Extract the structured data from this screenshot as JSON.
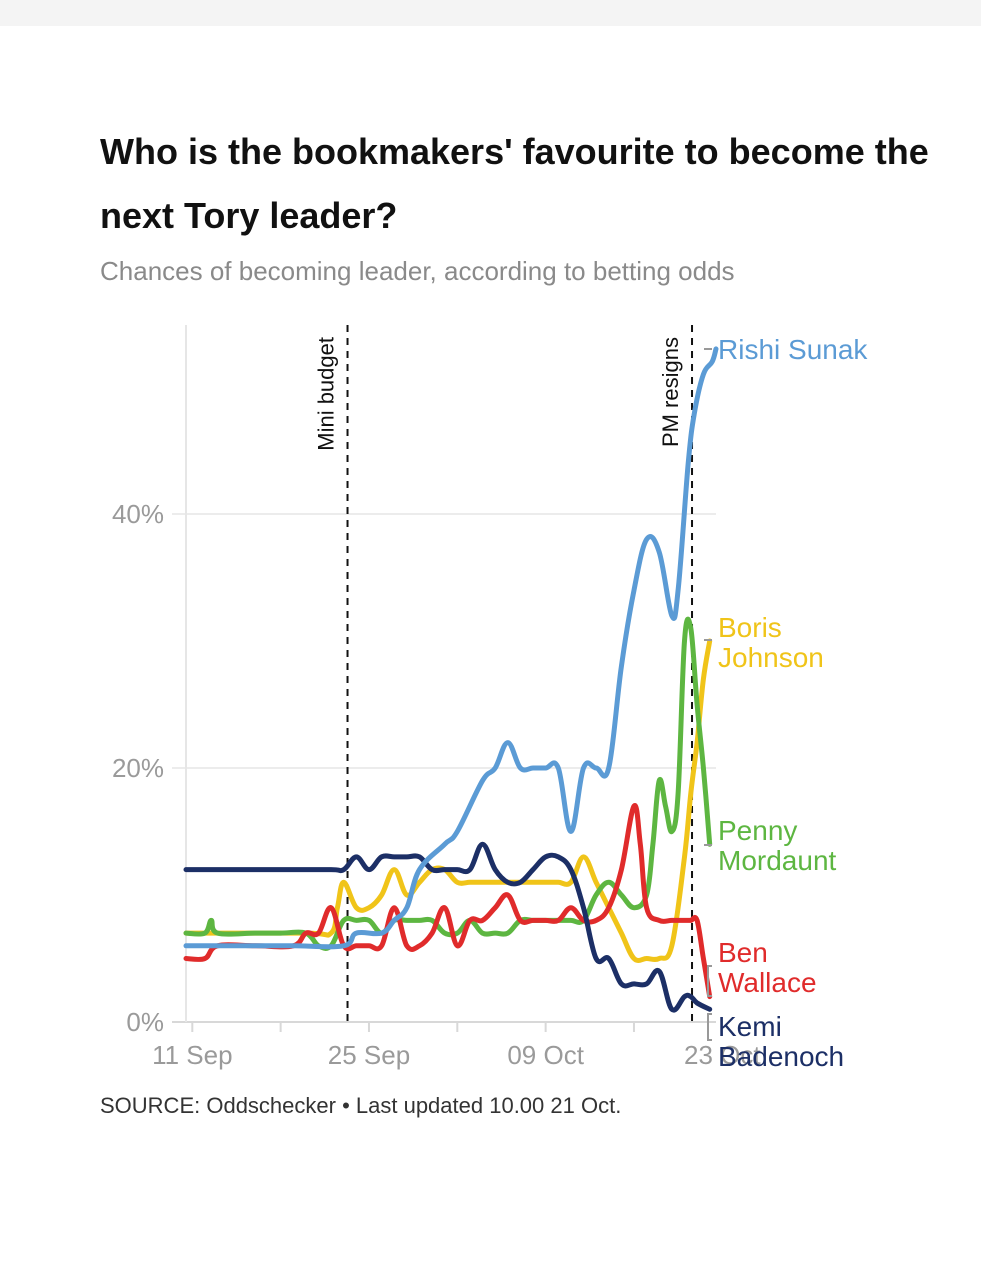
{
  "header": {
    "title": "Who is the bookmakers' favourite to become the next Tory leader?",
    "subtitle": "Chances of becoming leader, according to betting odds"
  },
  "footer": {
    "source": "SOURCE: Oddschecker • Last updated 10.00 21 Oct."
  },
  "chart_data": {
    "type": "line",
    "title": "Who is the bookmakers' favourite to become the next Tory leader?",
    "subtitle": "Chances of becoming leader, according to betting odds",
    "xlabel": "",
    "ylabel": "",
    "x_ticks": [
      "11 Sep",
      "25 Sep",
      "09 Oct",
      "23 Oct"
    ],
    "x_tick_days": [
      11,
      25,
      39,
      53
    ],
    "x_range": [
      10.5,
      52.5
    ],
    "y_ticks": [
      0,
      20,
      40
    ],
    "y_tick_labels": [
      "0%",
      "20%",
      "40%"
    ],
    "ylim": [
      0,
      55
    ],
    "grid": true,
    "legend": "inline-right",
    "events": [
      {
        "label": "Mini budget",
        "x_day": 23.3
      },
      {
        "label": "PM resigns",
        "x_day": 50.6
      }
    ],
    "series": [
      {
        "name": "Rishi Sunak",
        "color": "#5b9bd5",
        "points": [
          [
            10.5,
            6
          ],
          [
            16,
            6
          ],
          [
            19,
            6
          ],
          [
            23,
            6
          ],
          [
            24,
            7
          ],
          [
            26,
            7
          ],
          [
            27,
            8
          ],
          [
            28,
            9
          ],
          [
            29,
            12
          ],
          [
            31,
            14
          ],
          [
            32,
            15
          ],
          [
            34,
            19
          ],
          [
            35,
            20
          ],
          [
            36,
            22
          ],
          [
            37,
            20
          ],
          [
            38,
            20
          ],
          [
            39,
            20
          ],
          [
            40,
            20
          ],
          [
            41,
            15
          ],
          [
            42,
            20
          ],
          [
            43,
            20
          ],
          [
            44,
            20
          ],
          [
            45,
            28
          ],
          [
            46,
            34
          ],
          [
            47,
            38
          ],
          [
            48,
            37
          ],
          [
            49,
            32
          ],
          [
            49.5,
            34
          ],
          [
            50.3,
            44
          ],
          [
            50.8,
            48
          ],
          [
            51.5,
            51
          ],
          [
            52.2,
            52
          ],
          [
            52.5,
            53
          ]
        ]
      },
      {
        "name": "Boris Johnson",
        "color": "#f0c419",
        "points": [
          [
            10.5,
            7
          ],
          [
            20,
            7
          ],
          [
            22,
            7
          ],
          [
            22.5,
            9
          ],
          [
            23,
            11
          ],
          [
            24,
            9
          ],
          [
            25,
            9
          ],
          [
            26,
            10
          ],
          [
            27,
            12
          ],
          [
            28,
            10
          ],
          [
            29,
            11
          ],
          [
            30,
            12
          ],
          [
            31,
            12
          ],
          [
            32,
            11
          ],
          [
            33,
            11
          ],
          [
            34,
            11
          ],
          [
            35,
            11
          ],
          [
            36,
            11
          ],
          [
            37,
            11
          ],
          [
            38,
            11
          ],
          [
            39,
            11
          ],
          [
            40,
            11
          ],
          [
            41,
            11
          ],
          [
            42,
            13
          ],
          [
            43,
            11
          ],
          [
            44,
            9
          ],
          [
            45,
            7
          ],
          [
            46,
            5
          ],
          [
            47,
            5
          ],
          [
            48,
            5
          ],
          [
            49,
            6
          ],
          [
            50,
            13
          ],
          [
            50.5,
            18
          ],
          [
            51,
            22
          ],
          [
            51.5,
            27
          ],
          [
            52,
            30
          ]
        ]
      },
      {
        "name": "Penny Mordaunt",
        "color": "#5db641",
        "points": [
          [
            10.5,
            7
          ],
          [
            12,
            7
          ],
          [
            12.5,
            8
          ],
          [
            13,
            7
          ],
          [
            16,
            7
          ],
          [
            18,
            7
          ],
          [
            20,
            7
          ],
          [
            21,
            6
          ],
          [
            22,
            6
          ],
          [
            23,
            8
          ],
          [
            24,
            8
          ],
          [
            25,
            8
          ],
          [
            26,
            7
          ],
          [
            27,
            8
          ],
          [
            28,
            8
          ],
          [
            29,
            8
          ],
          [
            30,
            8
          ],
          [
            31,
            7
          ],
          [
            32,
            7
          ],
          [
            33,
            8
          ],
          [
            34,
            7
          ],
          [
            35,
            7
          ],
          [
            36,
            7
          ],
          [
            37,
            8
          ],
          [
            38,
            8
          ],
          [
            39,
            8
          ],
          [
            40,
            8
          ],
          [
            41,
            8
          ],
          [
            42,
            8
          ],
          [
            43,
            10
          ],
          [
            44,
            11
          ],
          [
            45,
            10
          ],
          [
            46,
            9
          ],
          [
            47,
            10
          ],
          [
            47.5,
            14
          ],
          [
            48,
            19
          ],
          [
            48.5,
            17
          ],
          [
            49,
            15
          ],
          [
            49.5,
            18
          ],
          [
            50,
            30
          ],
          [
            50.5,
            31
          ],
          [
            51,
            25
          ],
          [
            51.5,
            20
          ],
          [
            52,
            14
          ]
        ]
      },
      {
        "name": "Ben Wallace",
        "color": "#e02b2b",
        "points": [
          [
            10.5,
            5
          ],
          [
            12,
            5
          ],
          [
            13,
            6
          ],
          [
            16,
            6
          ],
          [
            19,
            6
          ],
          [
            20,
            7
          ],
          [
            21,
            7
          ],
          [
            22,
            9
          ],
          [
            23,
            6
          ],
          [
            24,
            6
          ],
          [
            25,
            6
          ],
          [
            26,
            6
          ],
          [
            27,
            9
          ],
          [
            28,
            6
          ],
          [
            29,
            6
          ],
          [
            30,
            7
          ],
          [
            31,
            9
          ],
          [
            32,
            6
          ],
          [
            33,
            8
          ],
          [
            34,
            8
          ],
          [
            35,
            9
          ],
          [
            36,
            10
          ],
          [
            37,
            8
          ],
          [
            38,
            8
          ],
          [
            39,
            8
          ],
          [
            40,
            8
          ],
          [
            41,
            9
          ],
          [
            42,
            8
          ],
          [
            43,
            8
          ],
          [
            44,
            9
          ],
          [
            45,
            12
          ],
          [
            46,
            17
          ],
          [
            46.5,
            14
          ],
          [
            47,
            9
          ],
          [
            48,
            8
          ],
          [
            49,
            8
          ],
          [
            50,
            8
          ],
          [
            50.5,
            8
          ],
          [
            51,
            8
          ],
          [
            51.5,
            5
          ],
          [
            52,
            2
          ]
        ]
      },
      {
        "name": "Kemi Badenoch",
        "color": "#1c2f66",
        "points": [
          [
            10.5,
            12
          ],
          [
            14,
            12
          ],
          [
            18,
            12
          ],
          [
            22,
            12
          ],
          [
            23,
            12
          ],
          [
            24,
            13
          ],
          [
            25,
            12
          ],
          [
            26,
            13
          ],
          [
            27,
            13
          ],
          [
            28,
            13
          ],
          [
            29,
            13
          ],
          [
            30,
            12
          ],
          [
            31,
            12
          ],
          [
            32,
            12
          ],
          [
            33,
            12
          ],
          [
            34,
            14
          ],
          [
            35,
            12
          ],
          [
            36,
            11
          ],
          [
            37,
            11
          ],
          [
            38,
            12
          ],
          [
            39,
            13
          ],
          [
            40,
            13
          ],
          [
            41,
            12
          ],
          [
            42,
            9
          ],
          [
            43,
            5
          ],
          [
            44,
            5
          ],
          [
            45,
            3
          ],
          [
            46,
            3
          ],
          [
            47,
            3
          ],
          [
            48,
            4
          ],
          [
            49,
            1
          ],
          [
            50,
            2
          ],
          [
            50.5,
            2
          ],
          [
            51,
            1.5
          ],
          [
            52,
            1
          ]
        ]
      }
    ],
    "series_labels": [
      {
        "series": "Rishi Sunak",
        "lines": [
          "Rishi Sunak"
        ]
      },
      {
        "series": "Boris Johnson",
        "lines": [
          "Boris",
          "Johnson"
        ]
      },
      {
        "series": "Penny Mordaunt",
        "lines": [
          "Penny",
          "Mordaunt"
        ]
      },
      {
        "series": "Ben Wallace",
        "lines": [
          "Ben",
          "Wallace"
        ]
      },
      {
        "series": "Kemi Badenoch",
        "lines": [
          "Kemi",
          "Badenoch"
        ]
      }
    ]
  }
}
